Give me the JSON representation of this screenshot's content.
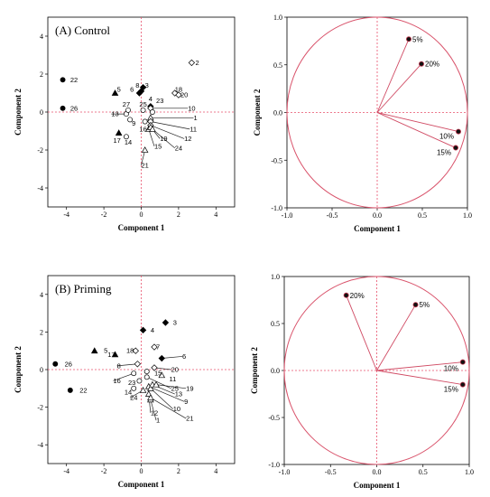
{
  "colors": {
    "reference": "#e8506b",
    "loading": "#d04a63",
    "points": "#000000"
  },
  "chart_data": [
    {
      "type": "scatter",
      "panel": "score",
      "title": "(A) Control",
      "xlabel": "Component 1",
      "ylabel": "Component 2",
      "xlim": [
        -5,
        5
      ],
      "ylim": [
        -5,
        5
      ],
      "xticks": [
        "-4",
        "-2",
        "0",
        "2",
        "4"
      ],
      "yticks": [
        "4",
        "2",
        "0",
        "-2",
        "-4"
      ],
      "points": [
        {
          "label": "1",
          "x": 0.5,
          "y": -0.3,
          "marker": "triangle-open"
        },
        {
          "label": "2",
          "x": 2.7,
          "y": 2.6,
          "marker": "diamond-open"
        },
        {
          "label": "3",
          "x": 0.1,
          "y": 1.3,
          "marker": "diamond-filled"
        },
        {
          "label": "4",
          "x": 0.5,
          "y": 0.3,
          "marker": "diamond-filled"
        },
        {
          "label": "5",
          "x": -1.4,
          "y": 1.0,
          "marker": "triangle-filled"
        },
        {
          "label": "6",
          "x": -0.1,
          "y": 1.0,
          "marker": "diamond-filled"
        },
        {
          "label": "8",
          "x": 0.0,
          "y": 1.1,
          "marker": "diamond-filled"
        },
        {
          "label": "9",
          "x": -0.6,
          "y": -0.4,
          "marker": "circle-open"
        },
        {
          "label": "10",
          "x": 0.5,
          "y": 0.2,
          "marker": "diamond-open"
        },
        {
          "label": "11",
          "x": 0.5,
          "y": -0.5,
          "marker": "diamond-open"
        },
        {
          "label": "12",
          "x": 0.5,
          "y": -0.7,
          "marker": "diamond-open"
        },
        {
          "label": "13",
          "x": -0.8,
          "y": -0.1,
          "marker": "circle-open"
        },
        {
          "label": "14",
          "x": -0.8,
          "y": -1.3,
          "marker": "circle-open"
        },
        {
          "label": "15",
          "x": 0.4,
          "y": -0.9,
          "marker": "triangle-open"
        },
        {
          "label": "16",
          "x": 0.2,
          "y": -0.5,
          "marker": "circle-open"
        },
        {
          "label": "17",
          "x": -1.2,
          "y": -1.1,
          "marker": "triangle-filled"
        },
        {
          "label": "18",
          "x": 1.8,
          "y": 1.0,
          "marker": "diamond-open"
        },
        {
          "label": "19",
          "x": 0.5,
          "y": -0.8,
          "marker": "triangle-open"
        },
        {
          "label": "20",
          "x": 2.0,
          "y": 0.9,
          "marker": "diamond-open"
        },
        {
          "label": "21",
          "x": 0.2,
          "y": -2.0,
          "marker": "triangle-open"
        },
        {
          "label": "22",
          "x": -4.2,
          "y": 1.7,
          "marker": "circle-filled"
        },
        {
          "label": "23",
          "x": 0.6,
          "y": 0.0,
          "marker": "circle-open"
        },
        {
          "label": "24",
          "x": 0.6,
          "y": -0.9,
          "marker": "triangle-open"
        },
        {
          "label": "25",
          "x": 0.1,
          "y": 0.1,
          "marker": "circle-open"
        },
        {
          "label": "26",
          "x": -4.2,
          "y": 0.2,
          "marker": "circle-filled"
        },
        {
          "label": "27",
          "x": -0.7,
          "y": 0.1,
          "marker": "circle-open"
        }
      ],
      "labels": [
        {
          "label": "1",
          "x": 2.8,
          "y": -0.3
        },
        {
          "label": "2",
          "x": 2.9,
          "y": 2.6
        },
        {
          "label": "3",
          "x": 0.2,
          "y": 1.4
        },
        {
          "label": "4",
          "x": 0.4,
          "y": 0.7
        },
        {
          "label": "5",
          "x": -1.3,
          "y": 1.2
        },
        {
          "label": "6",
          "x": -0.6,
          "y": 1.2
        },
        {
          "label": "8",
          "x": -0.3,
          "y": 1.4
        },
        {
          "label": "9",
          "x": -0.5,
          "y": -0.6
        },
        {
          "label": "10",
          "x": 2.5,
          "y": 0.2
        },
        {
          "label": "11",
          "x": 2.6,
          "y": -0.9
        },
        {
          "label": "12",
          "x": 2.3,
          "y": -1.4
        },
        {
          "label": "13",
          "x": -1.6,
          "y": -0.1
        },
        {
          "label": "14",
          "x": -0.9,
          "y": -1.6
        },
        {
          "label": "15",
          "x": 0.7,
          "y": -1.8
        },
        {
          "label": "16",
          "x": -0.1,
          "y": -0.9
        },
        {
          "label": "17",
          "x": -1.5,
          "y": -1.5
        },
        {
          "label": "18",
          "x": 1.8,
          "y": 1.2
        },
        {
          "label": "19",
          "x": 1.0,
          "y": -1.4
        },
        {
          "label": "20",
          "x": 2.1,
          "y": 0.9
        },
        {
          "label": "21",
          "x": 0.0,
          "y": -2.8
        },
        {
          "label": "22",
          "x": -3.8,
          "y": 1.7
        },
        {
          "label": "23",
          "x": 0.8,
          "y": 0.6
        },
        {
          "label": "24",
          "x": 1.8,
          "y": -1.9
        },
        {
          "label": "25",
          "x": -0.1,
          "y": 0.4
        },
        {
          "label": "26",
          "x": -3.8,
          "y": 0.2
        },
        {
          "label": "27",
          "x": -1.0,
          "y": 0.4
        }
      ]
    },
    {
      "type": "scatter",
      "panel": "loading",
      "title": "",
      "xlabel": "Component 1",
      "ylabel": "Component 2",
      "xlim": [
        -1.0,
        1.0
      ],
      "ylim": [
        -1.0,
        1.0
      ],
      "xticks": [
        "-1.0",
        "-0.5",
        "0.0",
        "0.5",
        "1.0"
      ],
      "yticks": [
        "1.0",
        "0.5",
        "0.0",
        "-0.5",
        "-1.0"
      ],
      "loadings": [
        {
          "label": "5%",
          "x": 0.35,
          "y": 0.77
        },
        {
          "label": "20%",
          "x": 0.49,
          "y": 0.51
        },
        {
          "label": "10%",
          "x": 0.9,
          "y": -0.2
        },
        {
          "label": "15%",
          "x": 0.87,
          "y": -0.37
        }
      ]
    },
    {
      "type": "scatter",
      "panel": "score",
      "title": "(B) Priming",
      "xlabel": "Component 1",
      "ylabel": "Component 2",
      "xlim": [
        -5,
        5
      ],
      "ylim": [
        -5,
        5
      ],
      "xticks": [
        "-4",
        "-2",
        "0",
        "2",
        "4"
      ],
      "yticks": [
        "4",
        "2",
        "0",
        "-2",
        "-4"
      ],
      "points": [
        {
          "label": "1",
          "x": 0.5,
          "y": -1.6,
          "marker": "triangle-open"
        },
        {
          "label": "3",
          "x": 1.3,
          "y": 2.5,
          "marker": "diamond-filled"
        },
        {
          "label": "4",
          "x": 0.1,
          "y": 2.1,
          "marker": "diamond-filled"
        },
        {
          "label": "5",
          "x": -2.5,
          "y": 1.0,
          "marker": "triangle-filled"
        },
        {
          "label": "6",
          "x": 1.1,
          "y": 0.6,
          "marker": "diamond-filled"
        },
        {
          "label": "7",
          "x": 0.7,
          "y": 1.2,
          "marker": "diamond-open"
        },
        {
          "label": "8",
          "x": -0.2,
          "y": 0.3,
          "marker": "diamond-open"
        },
        {
          "label": "9",
          "x": 0.4,
          "y": -0.9,
          "marker": "triangle-open"
        },
        {
          "label": "10",
          "x": 0.5,
          "y": -1.0,
          "marker": "triangle-open"
        },
        {
          "label": "11",
          "x": 1.1,
          "y": -0.3,
          "marker": "triangle-open"
        },
        {
          "label": "12",
          "x": 0.4,
          "y": -1.3,
          "marker": "triangle-open"
        },
        {
          "label": "13",
          "x": 0.6,
          "y": -0.8,
          "marker": "triangle-open"
        },
        {
          "label": "14",
          "x": -0.4,
          "y": -1.0,
          "marker": "circle-open"
        },
        {
          "label": "15",
          "x": 0.3,
          "y": -0.1,
          "marker": "circle-open"
        },
        {
          "label": "16",
          "x": -0.4,
          "y": -0.2,
          "marker": "circle-open"
        },
        {
          "label": "17",
          "x": -1.4,
          "y": 0.8,
          "marker": "triangle-filled"
        },
        {
          "label": "18",
          "x": -0.3,
          "y": 1.0,
          "marker": "diamond-open"
        },
        {
          "label": "19",
          "x": 0.8,
          "y": -0.8,
          "marker": "triangle-open"
        },
        {
          "label": "20",
          "x": 0.7,
          "y": 0.1,
          "marker": "diamond-open"
        },
        {
          "label": "21",
          "x": 0.5,
          "y": -1.5,
          "marker": "triangle-open"
        },
        {
          "label": "22",
          "x": -3.8,
          "y": -1.1,
          "marker": "circle-filled"
        },
        {
          "label": "23",
          "x": -0.1,
          "y": -0.6,
          "marker": "circle-open"
        },
        {
          "label": "24",
          "x": 0.1,
          "y": -1.1,
          "marker": "triangle-open"
        },
        {
          "label": "25",
          "x": 0.3,
          "y": -0.4,
          "marker": "circle-open"
        },
        {
          "label": "26",
          "x": -4.6,
          "y": 0.3,
          "marker": "circle-filled"
        }
      ],
      "labels": [
        {
          "label": "1",
          "x": 0.8,
          "y": -2.7
        },
        {
          "label": "3",
          "x": 1.7,
          "y": 2.5
        },
        {
          "label": "4",
          "x": 0.5,
          "y": 2.1
        },
        {
          "label": "5",
          "x": -2.0,
          "y": 1.0
        },
        {
          "label": "6",
          "x": 2.2,
          "y": 0.7
        },
        {
          "label": "7",
          "x": 0.8,
          "y": 1.2
        },
        {
          "label": "8",
          "x": -1.3,
          "y": 0.2
        },
        {
          "label": "9",
          "x": 2.3,
          "y": -1.7
        },
        {
          "label": "10",
          "x": 1.7,
          "y": -2.1
        },
        {
          "label": "11",
          "x": 1.5,
          "y": -0.5
        },
        {
          "label": "12",
          "x": 0.5,
          "y": -2.3
        },
        {
          "label": "13",
          "x": 1.8,
          "y": -1.3
        },
        {
          "label": "14",
          "x": -0.9,
          "y": -1.2
        },
        {
          "label": "15",
          "x": 0.7,
          "y": -0.2
        },
        {
          "label": "16",
          "x": -1.5,
          "y": -0.6
        },
        {
          "label": "17",
          "x": -1.8,
          "y": 0.8
        },
        {
          "label": "18",
          "x": -0.8,
          "y": 1.0
        },
        {
          "label": "19",
          "x": 2.4,
          "y": -1.0
        },
        {
          "label": "20",
          "x": 1.6,
          "y": 0.0
        },
        {
          "label": "21",
          "x": 2.4,
          "y": -2.6
        },
        {
          "label": "22",
          "x": -3.3,
          "y": -1.1
        },
        {
          "label": "23",
          "x": -0.7,
          "y": -0.7
        },
        {
          "label": "24",
          "x": -0.6,
          "y": -1.5
        },
        {
          "label": "25",
          "x": 1.6,
          "y": -1.0
        },
        {
          "label": "26",
          "x": -4.1,
          "y": 0.3
        }
      ]
    },
    {
      "type": "scatter",
      "panel": "loading",
      "title": "",
      "xlabel": "Component 1",
      "ylabel": "Component 2",
      "xlim": [
        -1.0,
        1.0
      ],
      "ylim": [
        -1.0,
        1.0
      ],
      "xticks": [
        "-1.0",
        "-0.5",
        "0.0",
        "0.5",
        "1.0"
      ],
      "yticks": [
        "1.0",
        "0.5",
        "0.0",
        "-0.5",
        "-1.0"
      ],
      "loadings": [
        {
          "label": "20%",
          "x": -0.33,
          "y": 0.8
        },
        {
          "label": "5%",
          "x": 0.42,
          "y": 0.7
        },
        {
          "label": "10%",
          "x": 0.93,
          "y": 0.09
        },
        {
          "label": "15%",
          "x": 0.93,
          "y": -0.15
        }
      ]
    }
  ]
}
